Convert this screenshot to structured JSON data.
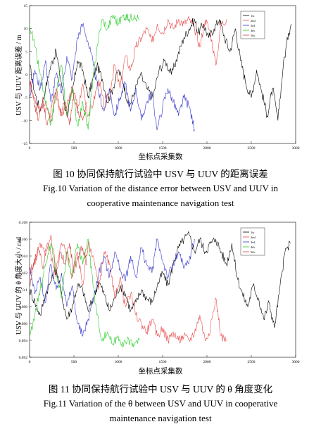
{
  "figures": [
    {
      "id": "fig10",
      "caption_cn": "图 10   协同保持航行试验中 USV 与 UUV 的距离误差",
      "caption_en_line1": "Fig.10    Variation of the distance error between USV and UUV in",
      "caption_en_line2": "cooperative maintenance navigation test"
    },
    {
      "id": "fig11",
      "caption_cn": "图 11   协同保持航行试验中 USV 与 UUV 的 θ 角度变化",
      "caption_en_line1": "Fig.11    Variation of the θ between USV and UUV in cooperative",
      "caption_en_line2": "maintenance navigation test"
    }
  ],
  "chart_data": [
    {
      "type": "line",
      "xlabel": "坐标点采集数",
      "ylabel": "USV 与 UUV 距离误差 / m",
      "xlim": [
        0,
        3000
      ],
      "ylim": [
        -15,
        15
      ],
      "x_ticks": [
        0,
        500,
        1000,
        1500,
        2000,
        2500,
        3000
      ],
      "y_ticks": [
        -15,
        -10,
        -5,
        0,
        5,
        10,
        15
      ],
      "legend_position": "top-right",
      "series": [
        {
          "name": "1st",
          "color": "#000000",
          "x": [
            0,
            60,
            120,
            180,
            240,
            300,
            360,
            420,
            480,
            540,
            600,
            660,
            700,
            760,
            820,
            880,
            940,
            1000,
            1060,
            1120,
            1180,
            1250,
            1320,
            1390,
            1460,
            1530,
            1600,
            1670,
            1740,
            1800,
            1860,
            1900,
            1960,
            2020,
            2080,
            2140,
            2200,
            2260,
            2320,
            2380,
            2440,
            2500,
            2560,
            2620,
            2680,
            2740,
            2800,
            2860,
            2920,
            2950
          ],
          "y": [
            2,
            -4,
            -8,
            -3,
            2,
            5,
            -2,
            -9,
            -4,
            3,
            1,
            -5,
            -2,
            2,
            -1,
            -6,
            -3,
            1,
            -2,
            -7,
            -4,
            0,
            -3,
            -5,
            1,
            3,
            0,
            4,
            8,
            10,
            12,
            9,
            11,
            8,
            10,
            12,
            8,
            5,
            10,
            3,
            -2,
            -5,
            1,
            -4,
            -9,
            -3,
            -10,
            2,
            9,
            11
          ]
        },
        {
          "name": "2nd",
          "color": "#e84a4a",
          "x": [
            0,
            60,
            120,
            180,
            240,
            300,
            360,
            420,
            480,
            540,
            600,
            660,
            720,
            780,
            840,
            900,
            960,
            1020,
            1080,
            1140,
            1200,
            1260,
            1320,
            1380,
            1440,
            1500,
            1560,
            1620,
            1680,
            1740,
            1800,
            1860,
            1920,
            1980,
            2040,
            2100,
            2160,
            2220
          ],
          "y": [
            -2,
            -5,
            -8,
            -6,
            -10,
            -4,
            -9,
            -7,
            -3,
            -8,
            -2,
            -9,
            -6,
            -1,
            -7,
            -4,
            2,
            -3,
            4,
            1,
            6,
            8,
            10,
            7,
            11,
            9,
            12,
            10,
            12,
            11,
            12,
            10,
            6,
            12,
            9,
            2,
            11,
            12
          ]
        },
        {
          "name": "3rd",
          "color": "#3333cc",
          "x": [
            0,
            60,
            120,
            180,
            240,
            300,
            360,
            420,
            480,
            540,
            600,
            660,
            720,
            780,
            840,
            900,
            960,
            1020,
            1080,
            1140,
            1200,
            1260,
            1320,
            1380,
            1440,
            1500,
            1560,
            1620,
            1680,
            1740,
            1800,
            1860
          ],
          "y": [
            -5,
            1,
            -3,
            3,
            -6,
            0,
            -4,
            4,
            -1,
            8,
            11,
            7,
            2,
            -4,
            -8,
            -3,
            -9,
            -5,
            -2,
            -8,
            -3,
            -10,
            -6,
            -4,
            -12,
            -7,
            -3,
            -6,
            -9,
            -5,
            -7,
            -12
          ]
        },
        {
          "name": "4th",
          "color": "#22cc22",
          "x": [
            0,
            60,
            120,
            180,
            240,
            300,
            360,
            420,
            480,
            540,
            600,
            660,
            700,
            760,
            820,
            880,
            940,
            1000,
            1060,
            1120,
            1180,
            1240
          ],
          "y": [
            11,
            6,
            0,
            -6,
            -11,
            -4,
            2,
            -9,
            -3,
            -11,
            -6,
            -12,
            -4,
            6,
            12,
            10,
            13,
            11,
            13,
            12,
            13,
            12
          ]
        },
        {
          "name": "5th",
          "color": "#d04040",
          "x": [
            0,
            50,
            100,
            150,
            200,
            250,
            300,
            350,
            400,
            450,
            500,
            550,
            600,
            650
          ],
          "y": [
            -1,
            -6,
            -10,
            -5,
            -11,
            -7,
            -3,
            -9,
            -6,
            -11,
            -4,
            -8,
            -10,
            -6
          ]
        }
      ]
    },
    {
      "type": "line",
      "xlabel": "坐标点采集数",
      "ylabel": "USV 与 UUV 的 θ 角度大小 / rad",
      "xlim": [
        0,
        3000
      ],
      "ylim": [
        0.092,
        0.108
      ],
      "x_ticks": [
        0,
        500,
        1000,
        1500,
        2000,
        2500,
        3000
      ],
      "y_ticks": [
        0.092,
        0.094,
        0.096,
        0.098,
        0.1,
        0.102,
        0.104,
        0.106,
        0.108
      ],
      "legend_position": "top-right",
      "series": [
        {
          "name": "1st",
          "color": "#000000",
          "x": [
            0,
            60,
            120,
            180,
            240,
            300,
            360,
            420,
            480,
            540,
            600,
            660,
            720,
            780,
            840,
            900,
            960,
            1020,
            1080,
            1140,
            1200,
            1260,
            1320,
            1380,
            1440,
            1500,
            1560,
            1620,
            1680,
            1740,
            1800,
            1860,
            1920,
            1980,
            2040,
            2100,
            2160,
            2220,
            2280,
            2340,
            2400,
            2460,
            2520,
            2580,
            2640,
            2700,
            2760,
            2820,
            2880,
            2940
          ],
          "y": [
            0.1,
            0.0985,
            0.097,
            0.0995,
            0.101,
            0.1025,
            0.0995,
            0.0965,
            0.098,
            0.1005,
            0.1,
            0.0975,
            0.099,
            0.101,
            0.0995,
            0.0975,
            0.099,
            0.1005,
            0.0995,
            0.0975,
            0.0985,
            0.1,
            0.099,
            0.0985,
            0.1005,
            0.102,
            0.1005,
            0.103,
            0.105,
            0.106,
            0.1065,
            0.1045,
            0.106,
            0.1045,
            0.1055,
            0.106,
            0.1045,
            0.103,
            0.1055,
            0.1015,
            0.0995,
            0.098,
            0.1005,
            0.099,
            0.0965,
            0.0985,
            0.0955,
            0.1,
            0.1045,
            0.1055
          ]
        },
        {
          "name": "2nd",
          "color": "#e84a4a",
          "x": [
            0,
            60,
            120,
            180,
            240,
            300,
            360,
            420,
            480,
            540,
            600,
            660,
            720,
            780,
            840,
            900,
            960,
            1020,
            1080,
            1140,
            1200,
            1260,
            1320,
            1380,
            1440,
            1500,
            1560,
            1620,
            1680,
            1740,
            1800,
            1860,
            1920,
            1980,
            2040,
            2100,
            2160,
            2220
          ],
          "y": [
            0.102,
            0.1035,
            0.1055,
            0.104,
            0.1065,
            0.1025,
            0.1055,
            0.1045,
            0.1015,
            0.1045,
            0.1005,
            0.1055,
            0.104,
            0.1,
            0.1045,
            0.103,
            0.099,
            0.1015,
            0.098,
            0.0995,
            0.097,
            0.096,
            0.095,
            0.0965,
            0.0945,
            0.0955,
            0.094,
            0.095,
            0.094,
            0.0945,
            0.094,
            0.095,
            0.097,
            0.094,
            0.0955,
            0.099,
            0.0945,
            0.094
          ]
        },
        {
          "name": "3rd",
          "color": "#3333cc",
          "x": [
            0,
            60,
            120,
            180,
            240,
            300,
            360,
            420,
            480,
            540,
            600,
            660,
            720,
            780,
            840,
            900,
            960,
            1020,
            1080,
            1140,
            1200,
            1260,
            1320,
            1380,
            1440,
            1500,
            1560,
            1620,
            1680,
            1740,
            1800,
            1860
          ],
          "y": [
            0.1025,
            0.0995,
            0.1015,
            0.0985,
            0.103,
            0.1,
            0.102,
            0.098,
            0.1005,
            0.096,
            0.0945,
            0.0965,
            0.099,
            0.102,
            0.104,
            0.1015,
            0.1045,
            0.1025,
            0.101,
            0.104,
            0.1015,
            0.105,
            0.103,
            0.102,
            0.106,
            0.1035,
            0.1015,
            0.103,
            0.1045,
            0.1025,
            0.1035,
            0.106
          ]
        },
        {
          "name": "4th",
          "color": "#22cc22",
          "x": [
            0,
            60,
            120,
            180,
            240,
            300,
            360,
            420,
            480,
            540,
            600,
            660,
            700,
            760,
            820,
            880,
            940,
            1000,
            1060,
            1120,
            1180,
            1240
          ],
          "y": [
            0.0945,
            0.097,
            0.1,
            0.103,
            0.1055,
            0.102,
            0.099,
            0.1045,
            0.1015,
            0.1055,
            0.103,
            0.106,
            0.102,
            0.097,
            0.094,
            0.095,
            0.0935,
            0.0945,
            0.0935,
            0.094,
            0.0935,
            0.094
          ]
        },
        {
          "name": "5th",
          "color": "#d04040",
          "x": [
            0,
            50,
            100,
            150,
            200,
            250,
            300,
            350,
            400,
            450,
            500,
            550,
            600,
            650
          ],
          "y": [
            0.1005,
            0.103,
            0.105,
            0.1025,
            0.1055,
            0.1035,
            0.1015,
            0.1045,
            0.103,
            0.1055,
            0.102,
            0.104,
            0.105,
            0.103
          ]
        }
      ]
    }
  ]
}
